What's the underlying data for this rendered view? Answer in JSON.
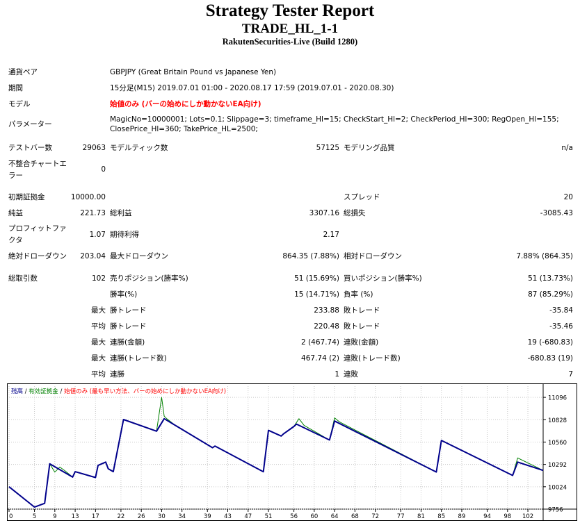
{
  "header": {
    "title": "Strategy Tester Report",
    "ea_name": "TRADE_HL_1-1",
    "server": "RakutenSecurities-Live (Build 1280)"
  },
  "settings": {
    "symbol_label": "通貨ペア",
    "symbol_value": "GBPJPY (Great Britain Pound vs Japanese Yen)",
    "period_label": "期間",
    "period_value": "15分足(M15) 2019.07.01 01:00 - 2020.08.17 17:59 (2019.07.01 - 2020.08.30)",
    "model_label": "モデル",
    "model_value": "始値のみ (バーの始めにしか動かないEA向け)",
    "params_label": "パラメーター",
    "params_line1": "MagicNo=10000001; Lots=0.1; Slippage=3; timeframe_Hl=15; CheckStart_Hl=2; CheckPeriod_Hl=300; RegOpen_Hl=155;",
    "params_line2": "ClosePrice_Hl=360; TakePrice_HL=2500;"
  },
  "stats": {
    "bars_label": "テストバー数",
    "bars_value": "29063",
    "ticks_label": "モデルティック数",
    "ticks_value": "57125",
    "quality_label": "モデリング品質",
    "quality_value": "n/a",
    "mismatch_label_1": "不整合チャートエ",
    "mismatch_label_2": "ラー",
    "mismatch_value": "0",
    "deposit_label": "初期証拠金",
    "deposit_value": "10000.00",
    "spread_label": "スプレッド",
    "spread_value": "20",
    "net_label": "純益",
    "net_value": "221.73",
    "gross_profit_label": "総利益",
    "gross_profit_value": "3307.16",
    "gross_loss_label": "総損失",
    "gross_loss_value": "-3085.43",
    "pf_label_1": "プロフィットファ",
    "pf_label_2": "クタ",
    "pf_value": "1.07",
    "expected_label": "期待利得",
    "expected_value": "2.17",
    "abs_dd_label": "絶対ドローダウン",
    "abs_dd_value": "203.04",
    "max_dd_label": "最大ドローダウン",
    "max_dd_value": "864.35 (7.88%)",
    "rel_dd_label": "相対ドローダウン",
    "rel_dd_value": "7.88% (864.35)",
    "trades_label": "総取引数",
    "trades_value": "102",
    "short_label": "売りポジション(勝率%)",
    "short_value": "51 (15.69%)",
    "long_label": "買いポジション(勝率%)",
    "long_value": "51 (13.73%)",
    "win_pct_label": "勝率(%)",
    "win_pct_value": "15 (14.71%)",
    "loss_pct_label": "負率 (%)",
    "loss_pct_value": "87 (85.29%)",
    "max_prefix": "最大",
    "avg_prefix": "平均",
    "max_win_label": "勝トレード",
    "max_win_value": "233.88",
    "max_loss_label": "敗トレード",
    "max_loss_value": "-35.84",
    "avg_win_label": "勝トレード",
    "avg_win_value": "220.48",
    "avg_loss_label": "敗トレード",
    "avg_loss_value": "-35.46",
    "max_cons_win_amt_label": "連勝(金額)",
    "max_cons_win_amt_value": "2 (467.74)",
    "max_cons_loss_amt_label": "連敗(金額)",
    "max_cons_loss_amt_value": "19 (-680.83)",
    "max_cons_win_cnt_label": "連勝(トレード数)",
    "max_cons_win_cnt_value": "467.74 (2)",
    "max_cons_loss_cnt_label": "連敗(トレード数)",
    "max_cons_loss_cnt_value": "-680.83 (19)",
    "avg_cons_win_label": "連勝",
    "avg_cons_win_value": "1",
    "avg_cons_loss_label": "連敗",
    "avg_cons_loss_value": "7"
  },
  "chart_data": {
    "type": "line",
    "legend": {
      "balance": "残高",
      "sep1": " / ",
      "equity": "有効証拠金",
      "sep2": " / ",
      "model": "始値のみ (最も早い方法、バーの始めにしか動かないEA向け)"
    },
    "colors": {
      "balance": "#00008b",
      "equity": "#008000",
      "model": "#ff0000",
      "grid": "#c8c8c8"
    },
    "y_ticks": [
      "11096",
      "10828",
      "10560",
      "10292",
      "10024",
      "9756"
    ],
    "y_tick_values": [
      11096,
      10828,
      10560,
      10292,
      10024,
      9756
    ],
    "ylim": [
      9756,
      11230
    ],
    "x_ticks": [
      "0",
      "5",
      "9",
      "13",
      "17",
      "22",
      "26",
      "30",
      "34",
      "39",
      "43",
      "47",
      "51",
      "56",
      "60",
      "64",
      "68",
      "72",
      "77",
      "81",
      "85",
      "89",
      "94",
      "98",
      "102"
    ],
    "xlim": [
      0,
      105
    ],
    "series": [
      {
        "key": "balance",
        "x": [
          0,
          5,
          7,
          8,
          12.5,
          13,
          17,
          17.5,
          19,
          19.5,
          20.5,
          22.5,
          29,
          30.5,
          40,
          40.5,
          50,
          51,
          53.5,
          54,
          56,
          56.5,
          63,
          64,
          84,
          85,
          99,
          100,
          105
        ],
        "y": [
          10024,
          9780,
          9825,
          10300,
          10140,
          10205,
          10135,
          10280,
          10320,
          10240,
          10205,
          10830,
          10690,
          10840,
          10492,
          10512,
          10204,
          10700,
          10632,
          10660,
          10747,
          10775,
          10585,
          10812,
          10201,
          10580,
          10160,
          10320,
          10220
        ]
      },
      {
        "key": "equity",
        "x": [
          0,
          5,
          7,
          8,
          9,
          10,
          11,
          12.5,
          13,
          17,
          17.5,
          19,
          19.5,
          20.5,
          22.5,
          29,
          30,
          30.5,
          31,
          33,
          40,
          40.5,
          50,
          51,
          53.5,
          54,
          56,
          57,
          58,
          63,
          64,
          65,
          84,
          85,
          99,
          100,
          105
        ],
        "y": [
          10024,
          9780,
          9825,
          10300,
          10200,
          10260,
          10215,
          10140,
          10205,
          10135,
          10280,
          10320,
          10240,
          10205,
          10830,
          10690,
          11096,
          10870,
          10840,
          10745,
          10492,
          10512,
          10204,
          10700,
          10632,
          10660,
          10747,
          10840,
          10760,
          10585,
          10850,
          10800,
          10201,
          10580,
          10160,
          10370,
          10220
        ]
      }
    ]
  }
}
